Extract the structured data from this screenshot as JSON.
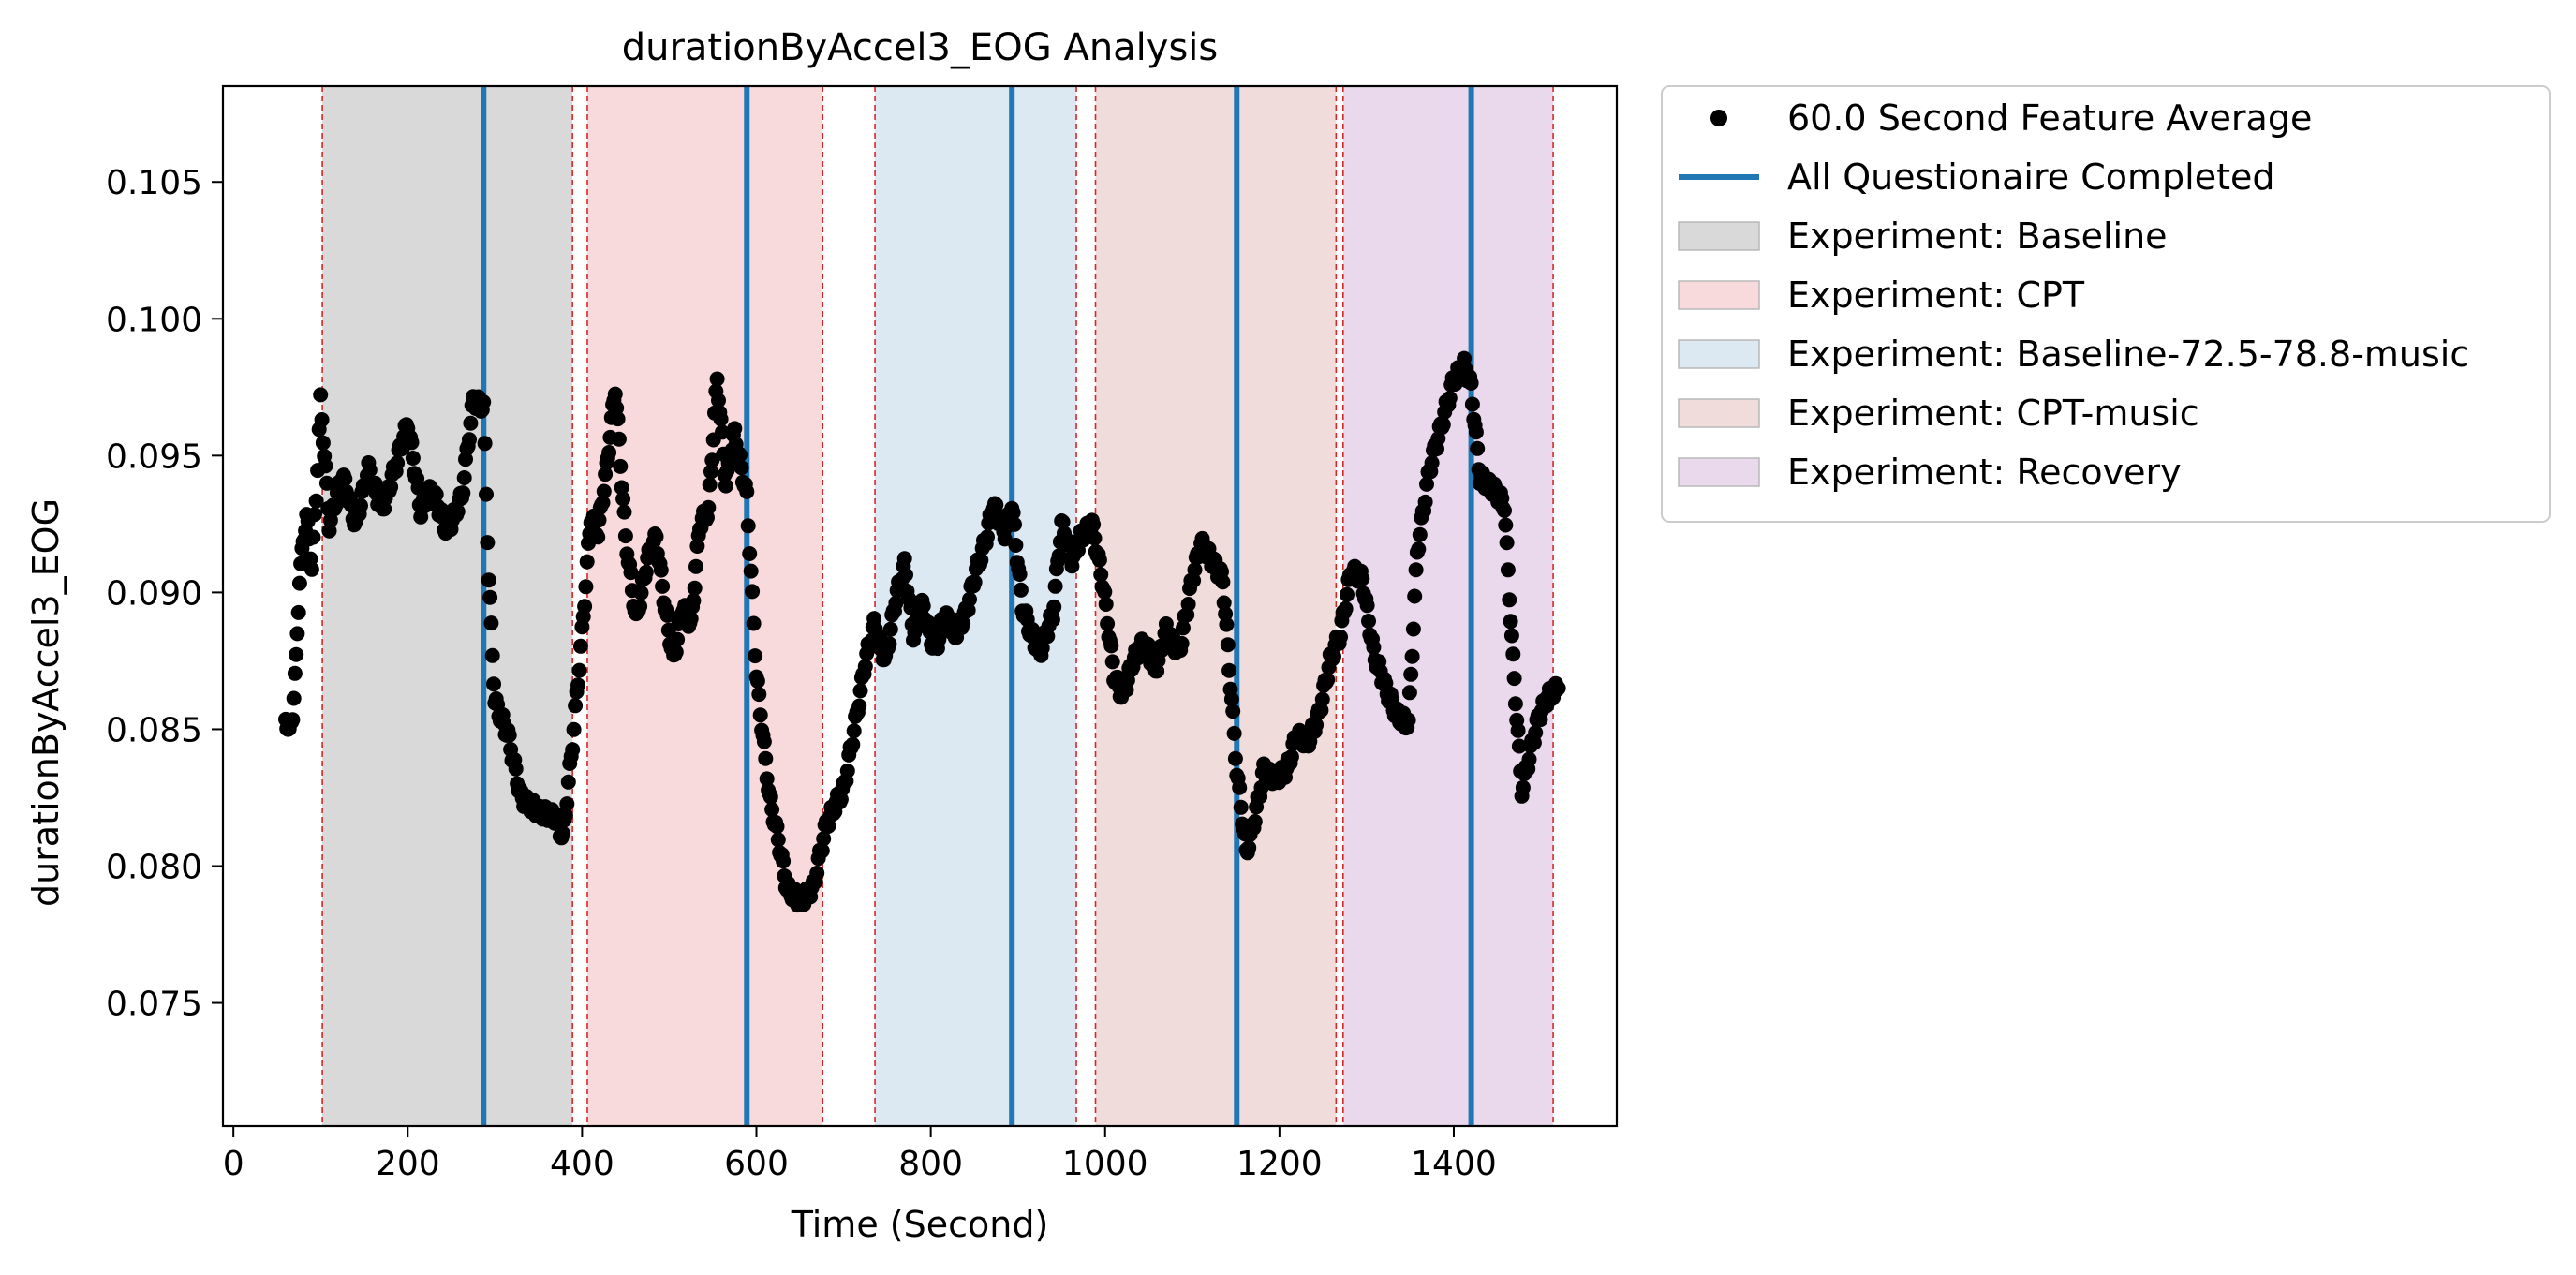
{
  "chart_data": {
    "type": "scatter",
    "title": "durationByAccel3_EOG Analysis",
    "xlabel": "Time (Second)",
    "ylabel": "durationByAccel3_EOG",
    "xlim": [
      -12,
      1587
    ],
    "ylim": [
      0.0705,
      0.1085
    ],
    "xticks": [
      0,
      200,
      400,
      600,
      800,
      1000,
      1200,
      1400
    ],
    "xtick_labels": [
      "0",
      "200",
      "400",
      "600",
      "800",
      "1000",
      "1200",
      "1400"
    ],
    "yticks": [
      0.075,
      0.08,
      0.085,
      0.09,
      0.095,
      0.1,
      0.105
    ],
    "ytick_labels": [
      "0.075",
      "0.080",
      "0.085",
      "0.090",
      "0.095",
      "0.100",
      "0.105"
    ],
    "grid": false,
    "legend_position": "outside-right-top",
    "legend": [
      {
        "label": "60.0 Second Feature Average",
        "kind": "marker",
        "color": "#000000"
      },
      {
        "label": "All Questionaire Completed",
        "kind": "line",
        "color": "#1f77b4"
      },
      {
        "label": "Experiment: Baseline",
        "kind": "patch",
        "color": "#d9d9d9"
      },
      {
        "label": "Experiment: CPT",
        "kind": "patch",
        "color": "#f8dadd"
      },
      {
        "label": "Experiment: Baseline-72.5-78.8-music",
        "kind": "patch",
        "color": "#dce8f2"
      },
      {
        "label": "Experiment: CPT-music",
        "kind": "patch",
        "color": "#f1dcdc"
      },
      {
        "label": "Experiment: Recovery",
        "kind": "patch",
        "color": "#ead8ec"
      }
    ],
    "experiment_spans": [
      {
        "name": "Baseline",
        "start": 102,
        "end": 389,
        "color": "#d9d9d9"
      },
      {
        "name": "CPT",
        "start": 406,
        "end": 676,
        "color": "#f8dadd"
      },
      {
        "name": "Baseline-72.5-78.8-music",
        "start": 736,
        "end": 967,
        "color": "#dce8f2"
      },
      {
        "name": "CPT-music",
        "start": 989,
        "end": 1265,
        "color": "#f1dcdc"
      },
      {
        "name": "Recovery",
        "start": 1273,
        "end": 1514,
        "color": "#ead8ec"
      }
    ],
    "boundary_lines": [
      102,
      389,
      406,
      676,
      736,
      967,
      989,
      1265,
      1273,
      1514
    ],
    "boundary_color": "#d62728",
    "questionnaire_lines": [
      287,
      589,
      893,
      1151,
      1420
    ],
    "questionnaire_color": "#1f77b4",
    "series": [
      {
        "name": "60.0 Second Feature Average",
        "color": "#000000",
        "keypoints": [
          [
            60,
            0.0855
          ],
          [
            64,
            0.0848
          ],
          [
            68,
            0.0856
          ],
          [
            72,
            0.0875
          ],
          [
            76,
            0.0905
          ],
          [
            80,
            0.0918
          ],
          [
            84,
            0.0928
          ],
          [
            90,
            0.091
          ],
          [
            95,
            0.0935
          ],
          [
            100,
            0.097
          ],
          [
            110,
            0.0925
          ],
          [
            125,
            0.0943
          ],
          [
            140,
            0.0925
          ],
          [
            155,
            0.0945
          ],
          [
            170,
            0.093
          ],
          [
            185,
            0.0945
          ],
          [
            200,
            0.0962
          ],
          [
            215,
            0.093
          ],
          [
            228,
            0.0938
          ],
          [
            245,
            0.0922
          ],
          [
            262,
            0.0935
          ],
          [
            275,
            0.097
          ],
          [
            287,
            0.0968
          ],
          [
            293,
            0.0905
          ],
          [
            300,
            0.086
          ],
          [
            315,
            0.0848
          ],
          [
            330,
            0.0825
          ],
          [
            350,
            0.082
          ],
          [
            370,
            0.0818
          ],
          [
            378,
            0.081
          ],
          [
            389,
            0.0845
          ],
          [
            400,
            0.0885
          ],
          [
            410,
            0.0928
          ],
          [
            418,
            0.0922
          ],
          [
            428,
            0.0945
          ],
          [
            438,
            0.0975
          ],
          [
            450,
            0.092
          ],
          [
            462,
            0.089
          ],
          [
            475,
            0.0912
          ],
          [
            485,
            0.092
          ],
          [
            495,
            0.0895
          ],
          [
            505,
            0.0875
          ],
          [
            515,
            0.0895
          ],
          [
            525,
            0.0888
          ],
          [
            535,
            0.0925
          ],
          [
            545,
            0.093
          ],
          [
            555,
            0.0978
          ],
          [
            565,
            0.094
          ],
          [
            575,
            0.0958
          ],
          [
            589,
            0.0935
          ],
          [
            600,
            0.087
          ],
          [
            615,
            0.0825
          ],
          [
            625,
            0.081
          ],
          [
            635,
            0.0792
          ],
          [
            650,
            0.0787
          ],
          [
            665,
            0.0792
          ],
          [
            680,
            0.0815
          ],
          [
            690,
            0.0822
          ],
          [
            700,
            0.0828
          ],
          [
            715,
            0.0855
          ],
          [
            725,
            0.0875
          ],
          [
            735,
            0.0888
          ],
          [
            748,
            0.0875
          ],
          [
            760,
            0.0898
          ],
          [
            770,
            0.091
          ],
          [
            780,
            0.0885
          ],
          [
            790,
            0.0895
          ],
          [
            805,
            0.0878
          ],
          [
            815,
            0.0892
          ],
          [
            828,
            0.0885
          ],
          [
            840,
            0.0892
          ],
          [
            852,
            0.0908
          ],
          [
            862,
            0.0918
          ],
          [
            872,
            0.0932
          ],
          [
            885,
            0.0922
          ],
          [
            893,
            0.0932
          ],
          [
            905,
            0.0895
          ],
          [
            915,
            0.0885
          ],
          [
            925,
            0.0878
          ],
          [
            940,
            0.0892
          ],
          [
            950,
            0.0925
          ],
          [
            962,
            0.0912
          ],
          [
            972,
            0.092
          ],
          [
            985,
            0.0925
          ],
          [
            998,
            0.0902
          ],
          [
            1010,
            0.087
          ],
          [
            1020,
            0.0862
          ],
          [
            1032,
            0.0875
          ],
          [
            1045,
            0.0882
          ],
          [
            1058,
            0.0872
          ],
          [
            1070,
            0.0886
          ],
          [
            1085,
            0.0878
          ],
          [
            1100,
            0.0905
          ],
          [
            1110,
            0.0918
          ],
          [
            1122,
            0.0912
          ],
          [
            1135,
            0.0905
          ],
          [
            1151,
            0.0835
          ],
          [
            1162,
            0.0805
          ],
          [
            1172,
            0.0818
          ],
          [
            1182,
            0.0835
          ],
          [
            1195,
            0.0832
          ],
          [
            1208,
            0.0835
          ],
          [
            1220,
            0.0848
          ],
          [
            1232,
            0.0845
          ],
          [
            1245,
            0.0855
          ],
          [
            1258,
            0.0875
          ],
          [
            1270,
            0.0885
          ],
          [
            1282,
            0.0908
          ],
          [
            1295,
            0.0905
          ],
          [
            1308,
            0.0878
          ],
          [
            1322,
            0.0865
          ],
          [
            1335,
            0.0855
          ],
          [
            1348,
            0.0852
          ],
          [
            1358,
            0.0915
          ],
          [
            1372,
            0.0945
          ],
          [
            1385,
            0.096
          ],
          [
            1400,
            0.0978
          ],
          [
            1412,
            0.0983
          ],
          [
            1420,
            0.0975
          ],
          [
            1430,
            0.0942
          ],
          [
            1445,
            0.0938
          ],
          [
            1458,
            0.0932
          ],
          [
            1468,
            0.0875
          ],
          [
            1478,
            0.0828
          ],
          [
            1488,
            0.0842
          ],
          [
            1498,
            0.0855
          ],
          [
            1508,
            0.0862
          ],
          [
            1520,
            0.0865
          ]
        ]
      }
    ]
  }
}
